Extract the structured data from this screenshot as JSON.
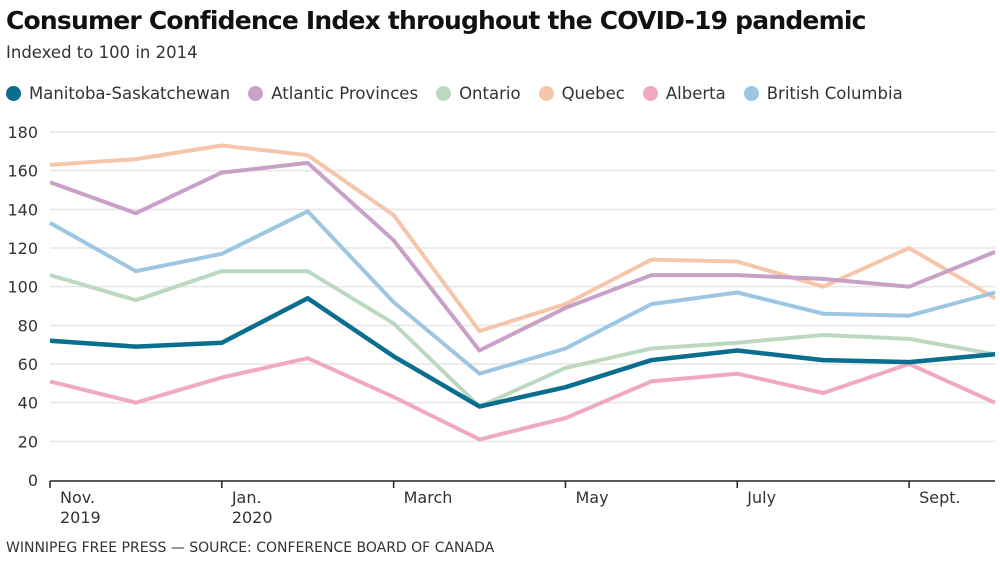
{
  "header": {
    "title": "Consumer Confidence Index throughout the COVID-19 pandemic",
    "subtitle": "Indexed to 100 in 2014"
  },
  "footer": {
    "credit": "WINNIPEG FREE PRESS — SOURCE: CONFERENCE BOARD OF CANADA"
  },
  "chart_data": {
    "type": "line",
    "title": "Consumer Confidence Index throughout the COVID-19 pandemic",
    "subtitle": "Indexed to 100 in 2014",
    "xlabel": "",
    "ylabel": "",
    "x": [
      "Nov. 2019",
      "Dec. 2019",
      "Jan. 2020",
      "Feb. 2020",
      "Mar. 2020",
      "Apr. 2020",
      "May 2020",
      "Jun. 2020",
      "Jul. 2020",
      "Aug. 2020",
      "Sep. 2020",
      "Oct. 2020"
    ],
    "x_tick_labels": [
      {
        "index": 0,
        "line1": "Nov.",
        "line2": "2019"
      },
      {
        "index": 2,
        "line1": "Jan.",
        "line2": "2020"
      },
      {
        "index": 4,
        "line1": "March",
        "line2": ""
      },
      {
        "index": 6,
        "line1": "May",
        "line2": ""
      },
      {
        "index": 8,
        "line1": "July",
        "line2": ""
      },
      {
        "index": 10,
        "line1": "Sept.",
        "line2": ""
      }
    ],
    "ylim": [
      0,
      180
    ],
    "y_ticks": [
      0,
      20,
      40,
      60,
      80,
      100,
      120,
      140,
      160,
      180
    ],
    "grid": true,
    "legend_position": "top-left",
    "series": [
      {
        "name": "Quebec",
        "color": "#f5c6a9",
        "emphasis": false,
        "values": [
          163,
          166,
          173,
          168,
          137,
          77,
          91,
          114,
          113,
          100,
          120,
          94
        ]
      },
      {
        "name": "Atlantic Provinces",
        "color": "#c9a0c7",
        "emphasis": false,
        "values": [
          154,
          138,
          159,
          164,
          124,
          67,
          89,
          106,
          106,
          104,
          100,
          118
        ]
      },
      {
        "name": "British Columbia",
        "color": "#9dc6e2",
        "emphasis": false,
        "values": [
          133,
          108,
          117,
          139,
          92,
          55,
          68,
          91,
          97,
          86,
          85,
          97
        ]
      },
      {
        "name": "Ontario",
        "color": "#bcd9c0",
        "emphasis": false,
        "values": [
          106,
          93,
          108,
          108,
          81,
          38,
          58,
          68,
          71,
          75,
          73,
          65
        ]
      },
      {
        "name": "Alberta",
        "color": "#f1a9c0",
        "emphasis": false,
        "values": [
          51,
          40,
          53,
          63,
          43,
          21,
          32,
          51,
          55,
          45,
          60,
          40
        ]
      },
      {
        "name": "Manitoba-Saskatchewan",
        "color": "#0a6e8f",
        "emphasis": true,
        "values": [
          72,
          69,
          71,
          94,
          64,
          38,
          48,
          62,
          67,
          62,
          61,
          65
        ]
      }
    ],
    "legend_order": [
      "Manitoba-Saskatchewan",
      "Atlantic Provinces",
      "Ontario",
      "Quebec",
      "Alberta",
      "British Columbia"
    ]
  }
}
